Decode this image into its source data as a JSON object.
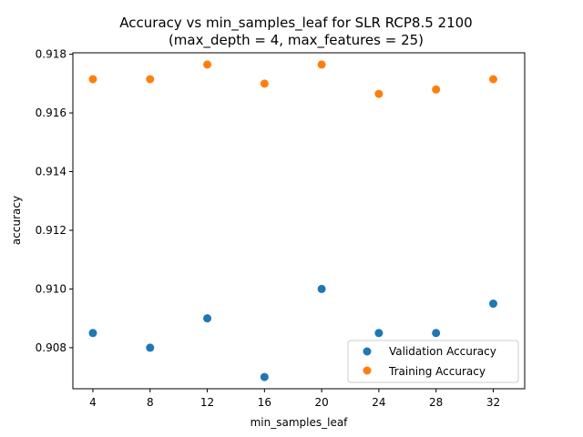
{
  "chart_data": {
    "type": "scatter",
    "title": "Accuracy vs min_samples_leaf for SLR RCP8.5 2100",
    "subtitle": "(max_depth = 4, max_features = 25)",
    "xlabel": "min_samples_leaf",
    "ylabel": "accuracy",
    "x": [
      4,
      8,
      12,
      16,
      20,
      24,
      28,
      32
    ],
    "xticks": [
      "4",
      "8",
      "12",
      "16",
      "20",
      "24",
      "28",
      "32"
    ],
    "yticks": [
      "0.908",
      "0.910",
      "0.912",
      "0.914",
      "0.916",
      "0.918"
    ],
    "xlim": [
      2.6,
      34.2
    ],
    "ylim": [
      0.9066,
      0.91805
    ],
    "grid": false,
    "legend_position": "lower-right",
    "series": [
      {
        "name": "Validation Accuracy",
        "color": "#1f77b4",
        "values": [
          0.9085,
          0.908,
          0.909,
          0.907,
          0.91,
          0.9085,
          0.9085,
          0.9095
        ]
      },
      {
        "name": "Training Accuracy",
        "color": "#ff7f0e",
        "values": [
          0.91715,
          0.91715,
          0.91765,
          0.917,
          0.91765,
          0.91665,
          0.9168,
          0.91715
        ]
      }
    ]
  }
}
